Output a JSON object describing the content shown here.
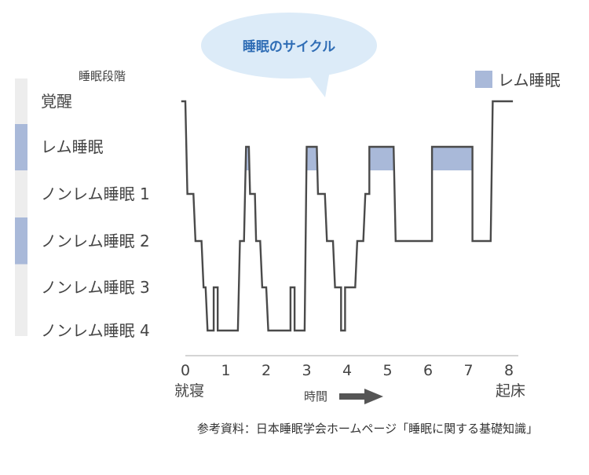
{
  "bubble": {
    "title": "睡眠のサイクル"
  },
  "y_axis_title": "睡眠段階",
  "legend": {
    "label": "レム睡眠",
    "color": "#a9b9d9"
  },
  "x_start_label": "就寝",
  "x_end_label": "起床",
  "x_axis_label": "時間",
  "source": "参考資料：日本睡眠学会ホームページ「睡眠に関する基礎知識」",
  "colors": {
    "line": "#4a4a4a",
    "rem": "#a9b9d9",
    "bubble": "#dcebf8",
    "bubble_text": "#2f6db5",
    "side_bar": "#ededed",
    "arrow": "#555555"
  },
  "chart_data": {
    "type": "line",
    "title": "睡眠のサイクル",
    "xlabel": "時間",
    "ylabel": "睡眠段階",
    "xlim": [
      0,
      8
    ],
    "x_ticks": [
      0,
      1,
      2,
      3,
      4,
      5,
      6,
      7,
      8
    ],
    "y_categories": [
      "覚醒",
      "レム睡眠",
      "ノンレム睡眠 1",
      "ノンレム睡眠 2",
      "ノンレム睡眠 3",
      "ノンレム睡眠 4"
    ],
    "series": [
      {
        "name": "睡眠段階",
        "points": [
          [
            -0.1,
            0
          ],
          [
            0,
            0
          ],
          [
            0.05,
            2
          ],
          [
            0.2,
            2
          ],
          [
            0.25,
            3
          ],
          [
            0.4,
            3
          ],
          [
            0.45,
            4
          ],
          [
            0.5,
            4
          ],
          [
            0.55,
            5
          ],
          [
            0.7,
            5
          ],
          [
            0.7,
            4
          ],
          [
            0.8,
            4
          ],
          [
            0.8,
            5
          ],
          [
            1.3,
            5
          ],
          [
            1.35,
            3
          ],
          [
            1.45,
            3
          ],
          [
            1.5,
            1
          ],
          [
            1.57,
            1
          ],
          [
            1.6,
            2
          ],
          [
            1.72,
            2
          ],
          [
            1.75,
            3
          ],
          [
            1.85,
            3
          ],
          [
            1.9,
            4
          ],
          [
            2.0,
            4
          ],
          [
            2.05,
            5
          ],
          [
            2.6,
            5
          ],
          [
            2.6,
            4
          ],
          [
            2.7,
            4
          ],
          [
            2.7,
            5
          ],
          [
            2.95,
            5
          ],
          [
            3.0,
            1
          ],
          [
            3.25,
            1
          ],
          [
            3.28,
            2
          ],
          [
            3.45,
            2
          ],
          [
            3.5,
            3
          ],
          [
            3.65,
            3
          ],
          [
            3.7,
            4
          ],
          [
            3.85,
            4
          ],
          [
            3.85,
            5
          ],
          [
            3.95,
            5
          ],
          [
            3.95,
            4
          ],
          [
            4.2,
            4
          ],
          [
            4.25,
            3
          ],
          [
            4.4,
            3
          ],
          [
            4.45,
            2
          ],
          [
            4.55,
            2
          ],
          [
            4.55,
            1
          ],
          [
            5.15,
            1
          ],
          [
            5.2,
            3
          ],
          [
            6.1,
            3
          ],
          [
            6.1,
            1
          ],
          [
            7.1,
            1
          ],
          [
            7.1,
            3
          ],
          [
            7.55,
            3
          ],
          [
            7.6,
            0
          ],
          [
            8.1,
            0
          ]
        ]
      }
    ],
    "rem_periods": [
      [
        1.5,
        1.57
      ],
      [
        3.0,
        3.25
      ],
      [
        4.55,
        5.15
      ],
      [
        6.1,
        7.1
      ]
    ],
    "stage_bands": [
      "none",
      "rem",
      "none",
      "rem",
      "none",
      "none"
    ],
    "legend": "top-right",
    "grid": false
  }
}
